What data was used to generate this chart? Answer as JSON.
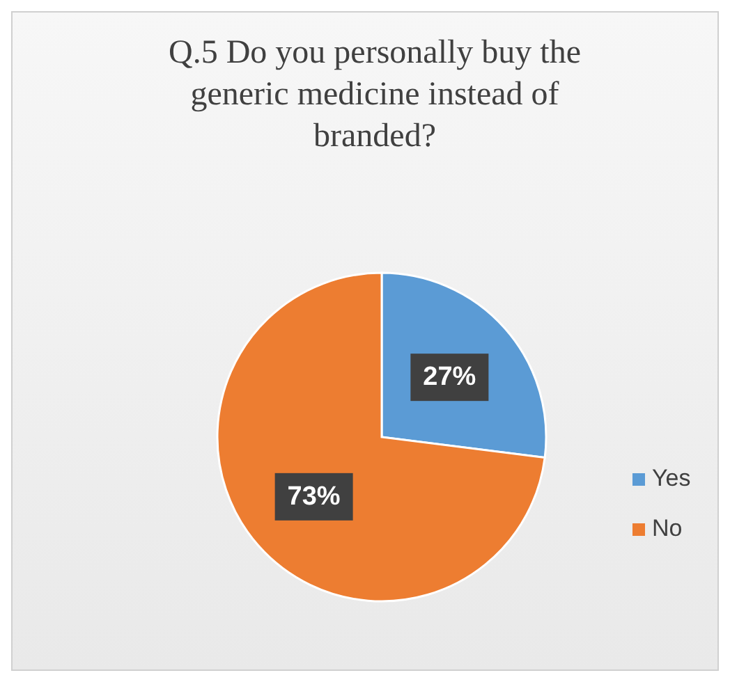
{
  "chart_data": {
    "type": "pie",
    "title": "Q.5 Do you personally buy the generic medicine instead of branded?",
    "categories": [
      "Yes",
      "No"
    ],
    "values": [
      27,
      73
    ],
    "colors": [
      "#5b9bd5",
      "#ed7d31"
    ],
    "value_labels": [
      "27%",
      "73%"
    ],
    "legend": "right"
  }
}
